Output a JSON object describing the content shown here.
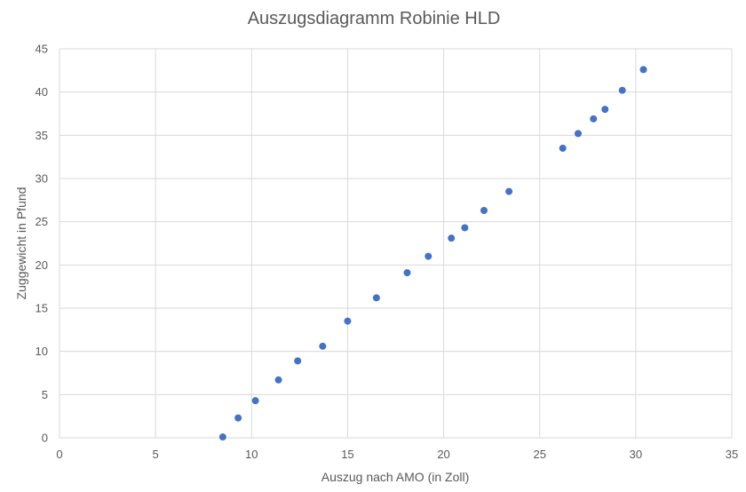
{
  "chart_data": {
    "type": "scatter",
    "title": "Auszugsdiagramm Robinie HLD",
    "xlabel": "Auszug nach AMO (in Zoll)",
    "ylabel": "Zuggewicht in Pfund",
    "xlim": [
      0,
      35
    ],
    "ylim": [
      0,
      45
    ],
    "xticks": [
      0,
      5,
      10,
      15,
      20,
      25,
      30,
      35
    ],
    "yticks": [
      0,
      5,
      10,
      15,
      20,
      25,
      30,
      35,
      40,
      45
    ],
    "grid": true,
    "legend": "none",
    "point_color": "#4472c4",
    "series": [
      {
        "x": [
          8.5,
          9.3,
          10.2,
          11.4,
          12.4,
          13.7,
          15.0,
          16.5,
          18.1,
          19.2,
          20.4,
          21.1,
          22.1,
          23.4,
          26.2,
          27.0,
          27.8,
          28.4,
          29.3,
          30.4
        ],
        "y": [
          0.1,
          2.3,
          4.3,
          6.7,
          8.9,
          10.6,
          13.5,
          16.2,
          19.1,
          21.0,
          23.1,
          24.3,
          26.3,
          28.5,
          33.5,
          35.2,
          36.9,
          38.0,
          40.2,
          42.6
        ]
      }
    ]
  }
}
